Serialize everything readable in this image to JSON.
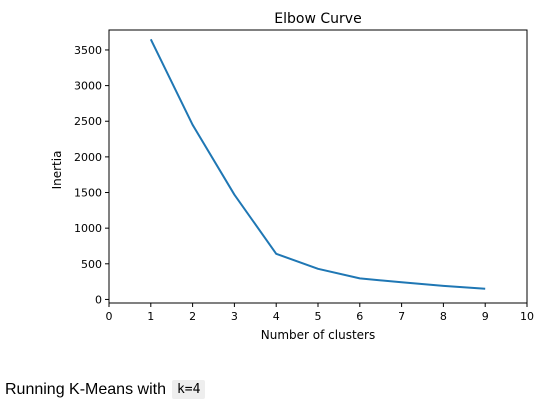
{
  "chart_data": {
    "type": "line",
    "title": "Elbow Curve",
    "xlabel": "Number of clusters",
    "ylabel": "Inertia",
    "xlim": [
      0,
      10
    ],
    "ylim": [
      -50,
      3780
    ],
    "xticks": [
      0,
      1,
      2,
      3,
      4,
      5,
      6,
      7,
      8,
      9,
      10
    ],
    "yticks": [
      0,
      500,
      1000,
      1500,
      2000,
      2500,
      3000,
      3500
    ],
    "grid": false,
    "color": "#1f77b4",
    "series": [
      {
        "x": [
          1,
          2,
          3,
          4,
          5,
          6,
          7,
          8,
          9
        ],
        "values": [
          3650,
          2450,
          1470,
          640,
          430,
          295,
          240,
          190,
          150
        ]
      }
    ]
  },
  "caption": {
    "text": "Running K-Means with",
    "code": "k=4"
  }
}
